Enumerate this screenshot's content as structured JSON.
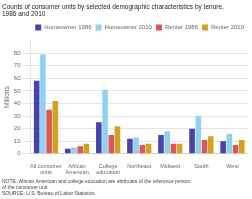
{
  "chart_data": {
    "type": "bar",
    "title": "Counts of consumer units by selected demographic characteristics by tenure,\n1986 and 2010",
    "ylabel": "Millions",
    "categories": [
      "All consumer\nunits",
      "African\nAmerican",
      "College\neducation",
      "Northeast",
      "Midwest",
      "South",
      "West"
    ],
    "series": [
      {
        "name": "Homeowner 1986",
        "color": "#4444aa",
        "values": [
          58,
          4,
          25,
          12,
          15,
          20,
          10
        ]
      },
      {
        "name": "Homeowner 2010",
        "color": "#90d0f0",
        "values": [
          79,
          5,
          51,
          13,
          18,
          30,
          16
        ]
      },
      {
        "name": "Renter 1986",
        "color": "#e05555",
        "values": [
          35,
          6,
          15,
          7,
          8,
          11,
          7
        ]
      },
      {
        "name": "Renter 2010",
        "color": "#d4a020",
        "values": [
          42,
          8,
          22,
          8,
          8,
          14,
          11
        ]
      }
    ],
    "ylim": [
      0,
      90
    ],
    "yticks": [
      0,
      10,
      20,
      30,
      40,
      50,
      60,
      70,
      80
    ],
    "grid": true,
    "legend": "upper right",
    "annotations": [
      "NOTE: African American and college education are attributes of the reference person\nof the consumer unit.\nSOURCE: U.S. Bureau of Labor Statistics."
    ]
  }
}
